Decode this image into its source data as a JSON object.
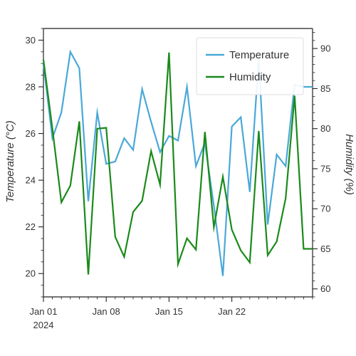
{
  "chart_data": {
    "type": "line",
    "x": [
      "2024-01-01",
      "2024-01-02",
      "2024-01-03",
      "2024-01-04",
      "2024-01-05",
      "2024-01-06",
      "2024-01-07",
      "2024-01-08",
      "2024-01-09",
      "2024-01-10",
      "2024-01-11",
      "2024-01-12",
      "2024-01-13",
      "2024-01-14",
      "2024-01-15",
      "2024-01-16",
      "2024-01-17",
      "2024-01-18",
      "2024-01-19",
      "2024-01-20",
      "2024-01-21",
      "2024-01-22",
      "2024-01-23",
      "2024-01-24",
      "2024-01-25",
      "2024-01-26",
      "2024-01-27",
      "2024-01-28",
      "2024-01-29",
      "2024-01-30",
      "2024-01-31"
    ],
    "x_tick_labels": [
      {
        "date": "2024-01-01",
        "line1": "Jan 01",
        "line2": "2024"
      },
      {
        "date": "2024-01-08",
        "line1": "Jan 08",
        "line2": ""
      },
      {
        "date": "2024-01-15",
        "line1": "Jan 15",
        "line2": ""
      },
      {
        "date": "2024-01-22",
        "line1": "Jan 22",
        "line2": ""
      }
    ],
    "xlim": [
      "2024-01-01",
      "2024-01-31"
    ],
    "series": [
      {
        "name": "Temperature",
        "axis": "left",
        "color": "#4aa8d8",
        "values": [
          29.0,
          25.8,
          26.9,
          29.5,
          28.8,
          23.1,
          26.9,
          24.7,
          24.8,
          25.8,
          25.3,
          27.9,
          26.5,
          25.2,
          25.9,
          25.7,
          28.0,
          24.6,
          25.6,
          22.9,
          19.9,
          26.3,
          26.7,
          23.5,
          29.2,
          22.1,
          25.1,
          24.6,
          28.1,
          28.0,
          28.0
        ]
      },
      {
        "name": "Humidity",
        "axis": "right",
        "color": "#1a8a1a",
        "values": [
          88.6,
          80.0,
          70.8,
          72.9,
          80.9,
          61.8,
          80.0,
          80.1,
          66.5,
          64.0,
          69.6,
          71.0,
          77.2,
          73.0,
          89.5,
          63.1,
          66.3,
          64.9,
          79.6,
          67.7,
          74.0,
          67.4,
          64.8,
          63.3,
          79.7,
          64.2,
          65.9,
          71.3,
          84.1,
          65.0,
          65.0
        ]
      }
    ],
    "y_left": {
      "label": "Temperature (°C)",
      "ylim": [
        19.0,
        30.5
      ],
      "ticks": [
        20,
        22,
        24,
        26,
        28,
        30
      ],
      "minor_step": 0.5
    },
    "y_right": {
      "label": "Humidity (%)",
      "ylim": [
        59.0,
        92.5
      ],
      "ticks": [
        60,
        65,
        70,
        75,
        80,
        85,
        90
      ],
      "minor_step": 1
    },
    "legend_position": "top-right",
    "grid": false
  }
}
